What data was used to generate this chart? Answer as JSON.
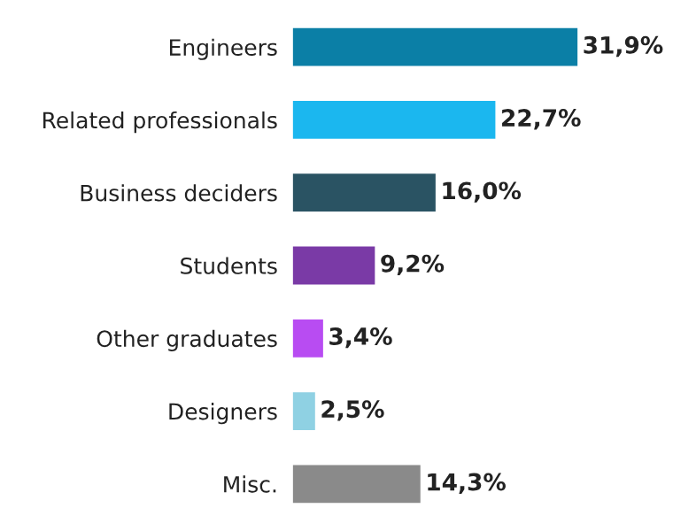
{
  "chart_data": {
    "type": "bar",
    "orientation": "horizontal",
    "tick_labels": "y",
    "grid": false,
    "legend": false,
    "categories": [
      "Engineers",
      "Related professionals",
      "Business deciders",
      "Students",
      "Other graduates",
      "Designers",
      "Misc."
    ],
    "values": [
      31.9,
      22.7,
      16.0,
      9.2,
      3.4,
      2.5,
      14.3
    ],
    "colors": [
      "#0b7fa6",
      "#1bb7ef",
      "#2a5363",
      "#7a3aa6",
      "#b84cf2",
      "#8fd1e3",
      "#8a8a8a"
    ],
    "value_labels": [
      "31,9%",
      "22,7%",
      "16,0%",
      "9,2%",
      "3,4%",
      "2,5%",
      "14,3%"
    ]
  }
}
